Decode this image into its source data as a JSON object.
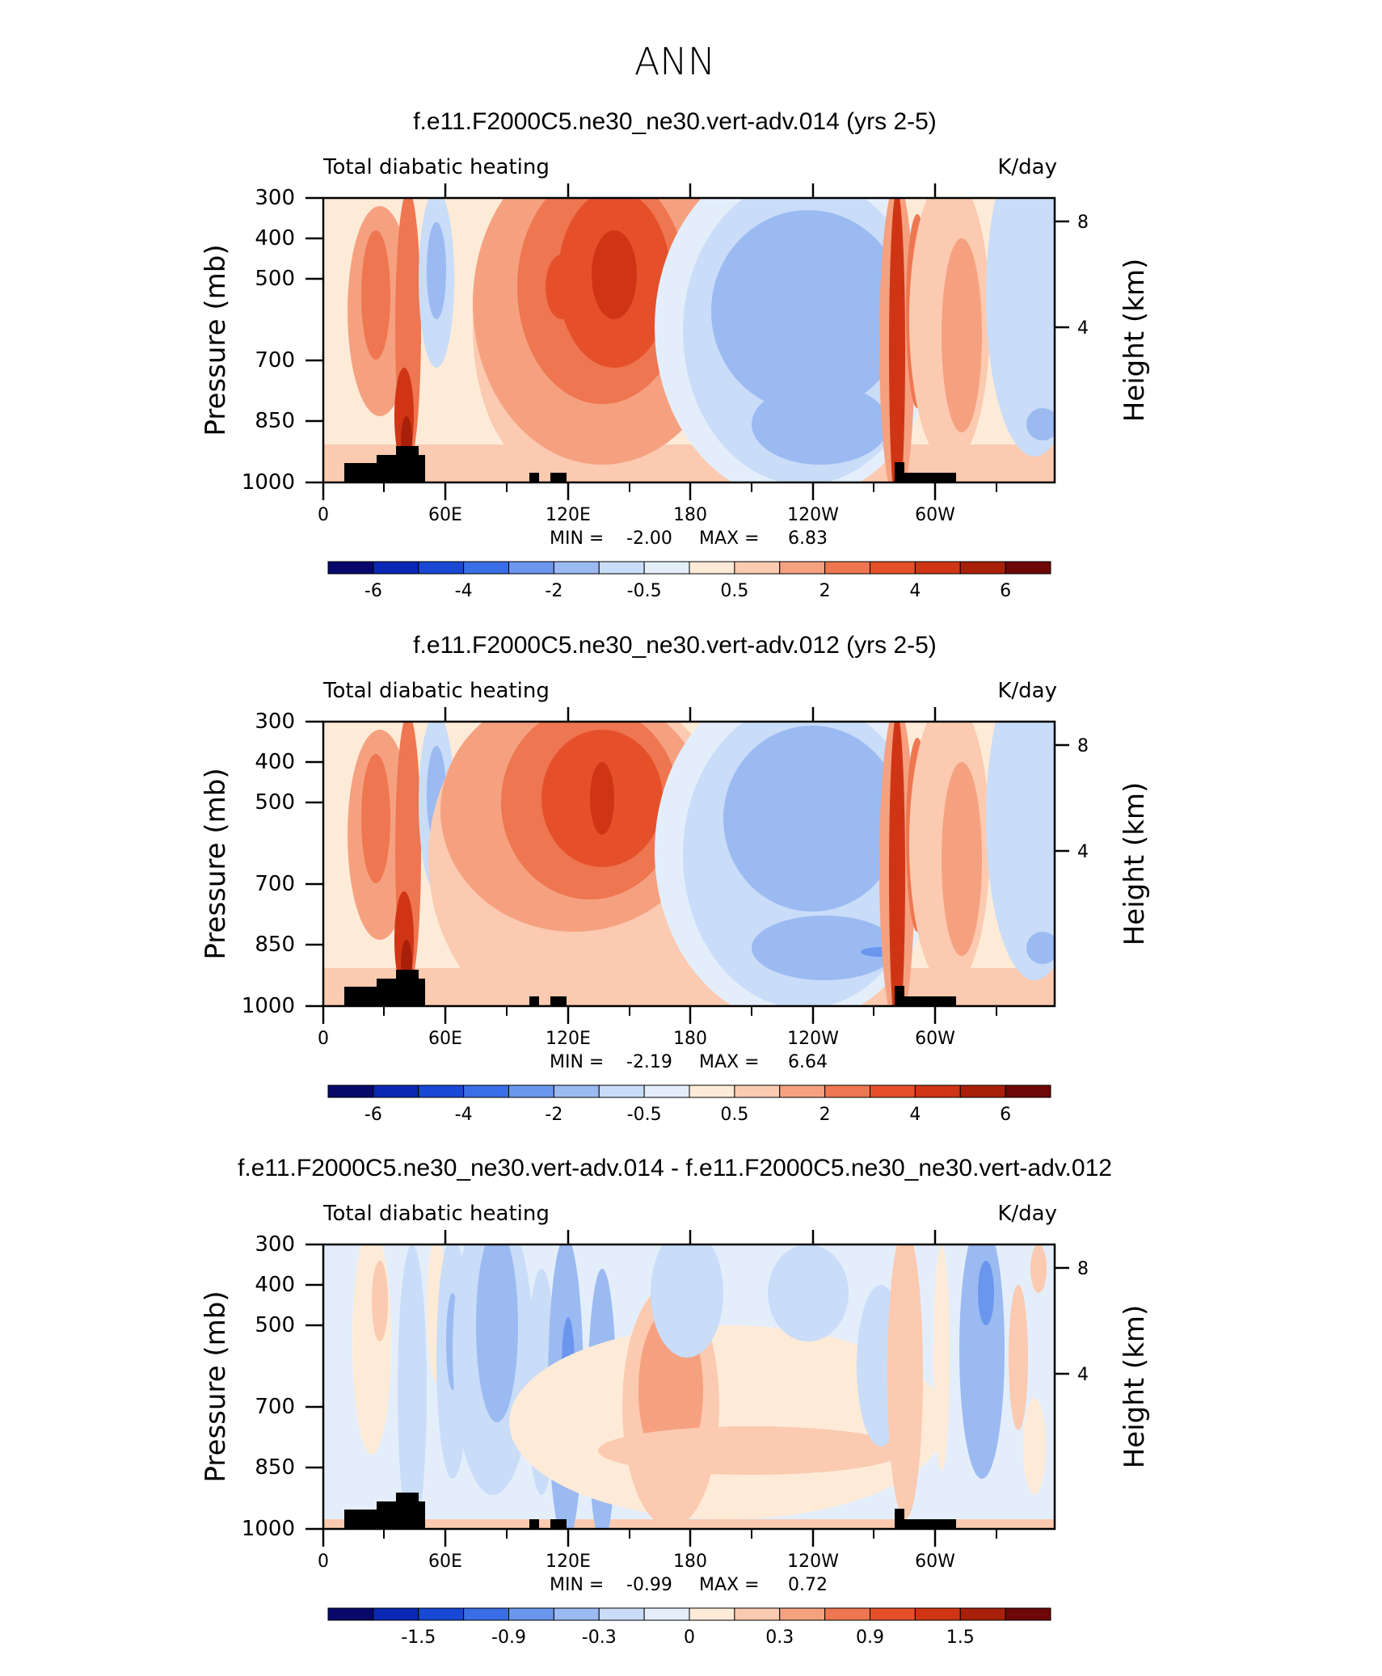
{
  "figure": {
    "title": "ANN"
  },
  "chart_data": [
    {
      "type": "heatmap",
      "title": "f.e11.F2000C5.ne30_ne30.vert-adv.014 (yrs 2-5)",
      "left_label": "Total diabatic heating",
      "right_label": "K/day",
      "ylabel": "Pressure (mb)",
      "ylabel_right": "Height (km)",
      "yticks": [
        "300",
        "400",
        "500",
        "700",
        "850",
        "1000"
      ],
      "yticks_right": [
        "8",
        "4"
      ],
      "xticks": [
        "0",
        "60E",
        "120E",
        "180",
        "120W",
        "60W"
      ],
      "min_label": "MIN =",
      "min_value": "-2.00",
      "max_label": "MAX =",
      "max_value": "6.83",
      "colorbar_labels": [
        "-6",
        "-4",
        "-2",
        "-0.5",
        "0.5",
        "2",
        "4",
        "6"
      ]
    },
    {
      "type": "heatmap",
      "title": "f.e11.F2000C5.ne30_ne30.vert-adv.012 (yrs 2-5)",
      "left_label": "Total diabatic heating",
      "right_label": "K/day",
      "ylabel": "Pressure (mb)",
      "ylabel_right": "Height (km)",
      "yticks": [
        "300",
        "400",
        "500",
        "700",
        "850",
        "1000"
      ],
      "yticks_right": [
        "8",
        "4"
      ],
      "xticks": [
        "0",
        "60E",
        "120E",
        "180",
        "120W",
        "60W"
      ],
      "min_label": "MIN =",
      "min_value": "-2.19",
      "max_label": "MAX =",
      "max_value": "6.64",
      "colorbar_labels": [
        "-6",
        "-4",
        "-2",
        "-0.5",
        "0.5",
        "2",
        "4",
        "6"
      ]
    },
    {
      "type": "heatmap",
      "title": "f.e11.F2000C5.ne30_ne30.vert-adv.014 - f.e11.F2000C5.ne30_ne30.vert-adv.012",
      "left_label": "Total diabatic heating",
      "right_label": "K/day",
      "ylabel": "Pressure (mb)",
      "ylabel_right": "Height (km)",
      "yticks": [
        "300",
        "400",
        "500",
        "700",
        "850",
        "1000"
      ],
      "yticks_right": [
        "8",
        "4"
      ],
      "xticks": [
        "0",
        "60E",
        "120E",
        "180",
        "120W",
        "60W"
      ],
      "min_label": "MIN =",
      "min_value": "-0.99",
      "max_label": "MAX =",
      "max_value": "0.72",
      "colorbar_labels": [
        "-1.5",
        "-0.9",
        "-0.3",
        "0",
        "0.3",
        "0.9",
        "1.5"
      ]
    }
  ],
  "colors": {
    "scale": [
      "#08086b",
      "#0a28b4",
      "#1848d4",
      "#3a6ee6",
      "#6a96ee",
      "#9bbaf2",
      "#c9dcf8",
      "#e4eefb",
      "#fdebd8",
      "#fbcab0",
      "#f5a180",
      "#ee7650",
      "#e5502a",
      "#cf3515",
      "#a8200a",
      "#6e0707"
    ]
  }
}
